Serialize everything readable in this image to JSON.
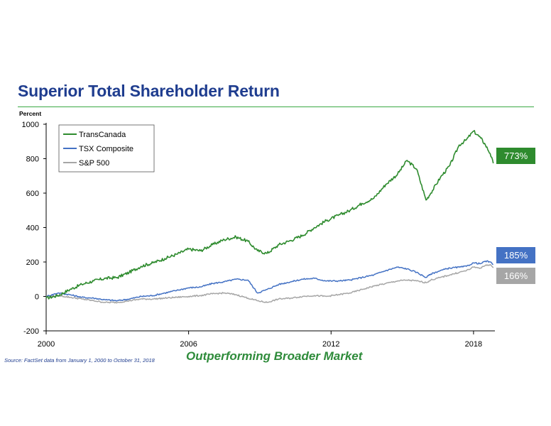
{
  "slide": {
    "title": "Superior Total Shareholder Return",
    "tagline": "Outperforming Broader Market",
    "source": "Source: FactSet data from January 1, 2000 to October 31, 2018"
  },
  "chart_data": {
    "type": "line",
    "title": "",
    "ylabel": "Percent",
    "xlabel": "",
    "xlim": [
      2000,
      2018.9
    ],
    "ylim": [
      -200,
      1000
    ],
    "x_ticks": [
      "2000",
      "2006",
      "2012",
      "2018"
    ],
    "y_ticks": [
      "-200",
      "0",
      "200",
      "400",
      "600",
      "800",
      "1000"
    ],
    "grid": false,
    "legend_position": "top-left",
    "series": [
      {
        "name": "TransCanada",
        "color": "#2e8b2e",
        "end_label": "773%",
        "x": [
          2000,
          2000.5,
          2001,
          2001.5,
          2002,
          2002.5,
          2003,
          2003.5,
          2004,
          2004.5,
          2005,
          2005.5,
          2006,
          2006.5,
          2007,
          2007.5,
          2008,
          2008.5,
          2008.9,
          2009.3,
          2009.8,
          2010.3,
          2010.8,
          2011.3,
          2011.8,
          2012.3,
          2012.8,
          2013.3,
          2013.8,
          2014.3,
          2014.8,
          2015.2,
          2015.6,
          2016.0,
          2016.2,
          2016.6,
          2017.0,
          2017.4,
          2017.7,
          2018.0,
          2018.3,
          2018.5,
          2018.7,
          2018.83
        ],
        "y": [
          -10,
          5,
          40,
          70,
          90,
          105,
          110,
          140,
          175,
          195,
          220,
          245,
          275,
          265,
          300,
          330,
          345,
          320,
          265,
          250,
          300,
          325,
          355,
          400,
          440,
          470,
          500,
          540,
          570,
          650,
          710,
          790,
          740,
          560,
          600,
          690,
          760,
          880,
          910,
          960,
          920,
          880,
          830,
          773
        ]
      },
      {
        "name": "TSX Composite",
        "color": "#4472c4",
        "end_label": "185%",
        "x": [
          2000,
          2000.5,
          2001,
          2001.5,
          2002,
          2002.5,
          2003,
          2003.5,
          2004,
          2004.5,
          2005,
          2005.5,
          2006,
          2006.5,
          2007,
          2007.5,
          2008,
          2008.5,
          2008.9,
          2009.3,
          2009.8,
          2010.3,
          2010.8,
          2011.3,
          2011.8,
          2012.3,
          2012.8,
          2013.3,
          2013.8,
          2014.3,
          2014.8,
          2015.2,
          2015.6,
          2016.0,
          2016.2,
          2016.6,
          2017.0,
          2017.4,
          2017.7,
          2018.0,
          2018.3,
          2018.5,
          2018.7,
          2018.83
        ],
        "y": [
          0,
          20,
          10,
          -5,
          -10,
          -20,
          -25,
          -15,
          0,
          5,
          20,
          35,
          50,
          55,
          75,
          85,
          100,
          95,
          20,
          40,
          70,
          85,
          100,
          105,
          90,
          90,
          95,
          110,
          125,
          150,
          170,
          160,
          140,
          110,
          130,
          150,
          165,
          170,
          175,
          195,
          190,
          205,
          200,
          185
        ]
      },
      {
        "name": "S&P 500",
        "color": "#a6a6a6",
        "end_label": "166%",
        "x": [
          2000,
          2000.5,
          2001,
          2001.5,
          2002,
          2002.5,
          2003,
          2003.5,
          2004,
          2004.5,
          2005,
          2005.5,
          2006,
          2006.5,
          2007,
          2007.5,
          2008,
          2008.5,
          2008.9,
          2009.3,
          2009.8,
          2010.3,
          2010.8,
          2011.3,
          2011.8,
          2012.3,
          2012.8,
          2013.3,
          2013.8,
          2014.3,
          2014.8,
          2015.2,
          2015.6,
          2016.0,
          2016.2,
          2016.6,
          2017.0,
          2017.4,
          2017.7,
          2018.0,
          2018.3,
          2018.5,
          2018.7,
          2018.83
        ],
        "y": [
          0,
          5,
          -5,
          -15,
          -25,
          -35,
          -35,
          -25,
          -15,
          -15,
          -10,
          -5,
          0,
          5,
          15,
          20,
          10,
          -10,
          -25,
          -35,
          -15,
          -10,
          0,
          5,
          0,
          10,
          20,
          40,
          60,
          75,
          90,
          95,
          90,
          80,
          95,
          110,
          125,
          140,
          150,
          170,
          165,
          180,
          185,
          166
        ]
      }
    ]
  }
}
